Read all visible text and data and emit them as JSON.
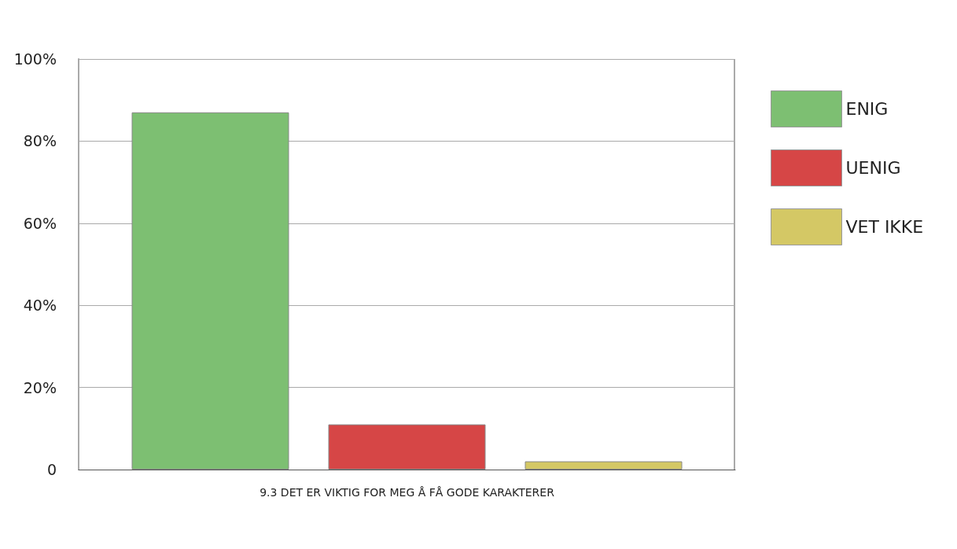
{
  "chart_data": {
    "type": "bar",
    "categories": [
      "9.3 DET ER VIKTIG FOR MEG Å FÅ GODE KARAKTERER"
    ],
    "series": [
      {
        "name": "ENIG",
        "color": "#7dbf72",
        "values": [
          87
        ]
      },
      {
        "name": "UENIG",
        "color": "#d64646",
        "values": [
          11
        ]
      },
      {
        "name": "VET IKKE",
        "color": "#d4c865",
        "values": [
          2
        ]
      }
    ],
    "ylim": [
      0,
      100
    ],
    "yticks": [
      {
        "value": 0,
        "label": "0"
      },
      {
        "value": 20,
        "label": "20%"
      },
      {
        "value": 40,
        "label": "40%"
      },
      {
        "value": 60,
        "label": "60%"
      },
      {
        "value": 80,
        "label": "80%"
      },
      {
        "value": 100,
        "label": "100%"
      }
    ],
    "grid": "y",
    "legend": "right"
  }
}
